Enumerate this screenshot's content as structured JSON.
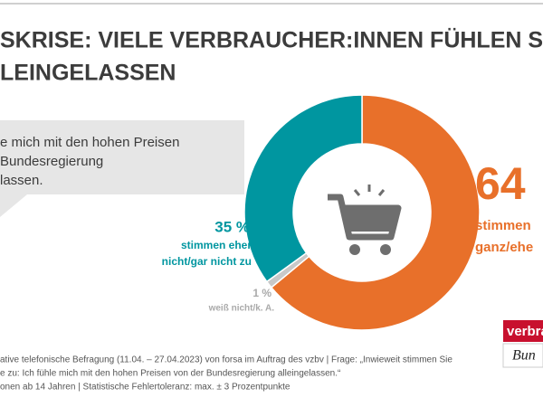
{
  "chart_data": {
    "type": "donut",
    "title": [
      "SKRISE: VIELE VERBRAUCHER:INNEN FÜHLEN S",
      "LEINGELASSEN"
    ],
    "quote": [
      "e mich mit den hohen Preisen",
      "Bundesregierung",
      "lassen."
    ],
    "categories": [
      [
        "stimmen",
        "ganz/ehe"
      ],
      [
        "weiß nicht/k. A."
      ],
      [
        "stimmen eher",
        "nicht/gar nicht zu"
      ]
    ],
    "values": [
      64,
      1,
      35
    ],
    "value_labels": [
      "64",
      "1 %",
      "35 %"
    ],
    "colors": [
      "#e8702a",
      "#c8c8c8",
      "#0096a0"
    ]
  },
  "footer": [
    "ative telefonische Befragung (11.04. – 27.04.2023) von forsa im Auftrag des vzbv | Frage: „Inwieweit stimmen Sie",
    "e zu: Ich fühle mich mit den hohen Preisen von der Bundesregierung alleingelassen.“",
    "onen ab 14 Jahren | Statistische Fehlertoleranz: max. ± 3 Prozentpunkte"
  ],
  "logo": [
    "verbrau",
    "Bun"
  ]
}
